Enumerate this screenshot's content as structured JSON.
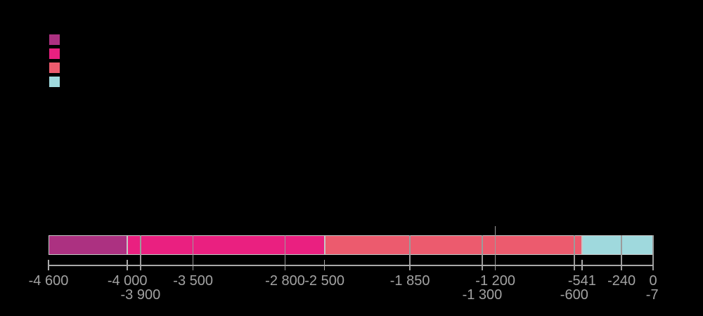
{
  "chart_data": {
    "type": "bar",
    "subtype": "stacked-horizontal-timeline",
    "title": "",
    "axis": {
      "min": -4600,
      "max": 0
    },
    "segments": [
      {
        "name": "segment-1",
        "from": -4600,
        "to": -4000,
        "color": "#ac3181"
      },
      {
        "name": "segment-2",
        "from": -4000,
        "to": -2500,
        "color": "#ea2080"
      },
      {
        "name": "segment-3",
        "from": -2500,
        "to": -541,
        "color": "#ec5b6e"
      },
      {
        "name": "segment-4",
        "from": -541,
        "to": 0,
        "color": "#9fd9dd"
      }
    ],
    "legend": {
      "position": "top-left",
      "swatches": [
        {
          "name": "legend-swatch-1",
          "color": "#ac3181"
        },
        {
          "name": "legend-swatch-2",
          "color": "#ea2080"
        },
        {
          "name": "legend-swatch-3",
          "color": "#ec5b6e"
        },
        {
          "name": "legend-swatch-4",
          "color": "#9fd9dd"
        }
      ]
    },
    "ticks": [
      {
        "value": -4600,
        "label": "-4 600",
        "row": 1,
        "grid": "tick"
      },
      {
        "value": -4000,
        "label": "-4 000",
        "row": 1,
        "grid": "tick"
      },
      {
        "value": -3900,
        "label": "-3 900",
        "row": 2,
        "grid": "full"
      },
      {
        "value": -3500,
        "label": "-3 500",
        "row": 1,
        "grid": "full"
      },
      {
        "value": -2800,
        "label": "-2 800",
        "row": 1,
        "grid": "full"
      },
      {
        "value": -2500,
        "label": "-2 500",
        "row": 1,
        "grid": "tick"
      },
      {
        "value": -1850,
        "label": "-1 850",
        "row": 1,
        "grid": "full"
      },
      {
        "value": -1300,
        "label": "-1 300",
        "row": 2,
        "grid": "full"
      },
      {
        "value": -1200,
        "label": "-1 200",
        "row": 1,
        "grid": "extended"
      },
      {
        "value": -600,
        "label": "-600",
        "row": 2,
        "grid": "full"
      },
      {
        "value": -541,
        "label": "-541",
        "row": 1,
        "grid": "tick"
      },
      {
        "value": -240,
        "label": "-240",
        "row": 1,
        "grid": "full"
      },
      {
        "value": -7,
        "label": "-7",
        "row": 2,
        "grid": "none"
      },
      {
        "value": 0,
        "label": "0",
        "row": 1,
        "grid": "full"
      }
    ],
    "colors": {
      "background": "#000000",
      "axis": "#a9a9a9",
      "grid": "#9b9b9b",
      "label": "#a2a2a2",
      "bar_border": "#c6c6c6"
    }
  }
}
